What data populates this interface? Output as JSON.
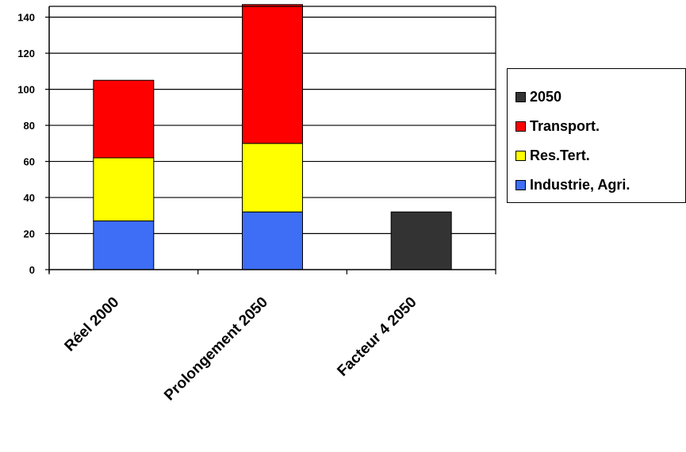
{
  "chart_data": {
    "type": "bar",
    "stacked": true,
    "categories": [
      "Réel 2000",
      "Prolongement 2050",
      "Facteur 4 2050"
    ],
    "series": [
      {
        "name": "Industrie, Agri.",
        "color": "#3d6ef5",
        "values": [
          27,
          32,
          0
        ]
      },
      {
        "name": "Res.Tert.",
        "color": "#ffff00",
        "values": [
          35,
          38,
          0
        ]
      },
      {
        "name": "Transport.",
        "color": "#ff0000",
        "values": [
          43,
          77,
          0
        ]
      },
      {
        "name": "2050",
        "color": "#333333",
        "values": [
          0,
          0,
          32
        ]
      }
    ],
    "yticks": [
      0,
      20,
      40,
      60,
      80,
      100,
      120,
      140
    ],
    "ylim": [
      0,
      146
    ],
    "grid": true,
    "legend_position": "right",
    "title": "",
    "xlabel": "",
    "ylabel": ""
  }
}
